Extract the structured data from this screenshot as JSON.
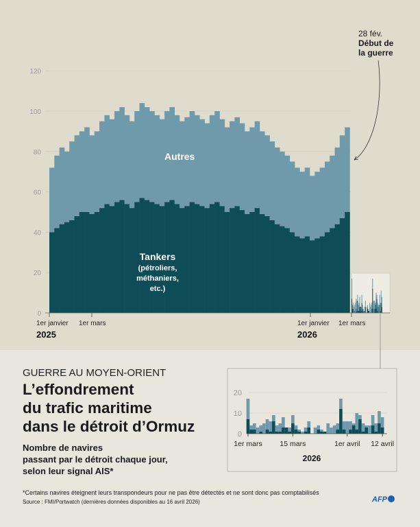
{
  "header": {
    "kicker": "GUERRE AU MOYEN-ORIENT",
    "title_lines": [
      "L’effondrement",
      "du trafic maritime",
      "dans le détroit d’Ormuz"
    ],
    "subtitle_lines": [
      "Nombre de navires",
      "passant par le détroit chaque jour,",
      "selon leur signal AIS*"
    ]
  },
  "footer": {
    "note": "*Certains navires éteignent leurs transpondeurs pour ne pas être détectés et ne sont donc pas comptabilisés",
    "source": "Source : FMI/Portwatch (dernières données disponibles au 16 avril 2026)",
    "logo": "AFP"
  },
  "colors": {
    "tankers": "#0e4d57",
    "autres": "#6f9aab",
    "bg_top": "#e0dccd",
    "bg_bottom": "#e9e6de"
  },
  "chart_data": [
    {
      "type": "bar",
      "stacked": true,
      "granularity": "weekly approximation of daily data",
      "x_start": "2025-01-01",
      "ylim": [
        0,
        130
      ],
      "yticks": [
        0,
        20,
        40,
        60,
        80,
        100,
        120
      ],
      "xticks": [
        {
          "label": "1er janvier",
          "year": "2025"
        },
        {
          "label": "1er mars",
          "year": ""
        },
        {
          "label": "1er janvier",
          "year": "2026"
        },
        {
          "label": "1er mars",
          "year": ""
        }
      ],
      "series": [
        {
          "name": "Tankers (pétroliers, méthaniers, etc.)",
          "label_lines": [
            "Tankers",
            "(pétroliers,",
            "méthaniers,",
            "etc.)"
          ],
          "values": [
            40,
            42,
            44,
            45,
            46,
            48,
            50,
            50,
            49,
            50,
            52,
            54,
            53,
            55,
            56,
            54,
            52,
            55,
            57,
            56,
            55,
            54,
            53,
            55,
            56,
            54,
            52,
            53,
            55,
            54,
            53,
            52,
            54,
            55,
            53,
            50,
            52,
            53,
            51,
            49,
            50,
            52,
            49,
            48,
            46,
            44,
            43,
            42,
            40,
            38,
            37,
            38,
            36,
            37,
            38,
            40,
            42,
            44,
            47,
            50
          ]
        },
        {
          "name": "Autres",
          "label_lines": [
            "Autres"
          ],
          "values": [
            32,
            36,
            38,
            35,
            39,
            40,
            40,
            42,
            39,
            40,
            43,
            44,
            43,
            45,
            46,
            44,
            43,
            45,
            47,
            46,
            45,
            44,
            43,
            45,
            46,
            44,
            43,
            44,
            45,
            44,
            43,
            42,
            44,
            45,
            43,
            42,
            43,
            44,
            43,
            41,
            42,
            43,
            41,
            40,
            39,
            38,
            37,
            36,
            35,
            34,
            33,
            34,
            32,
            33,
            34,
            35,
            36,
            38,
            41,
            42
          ]
        }
      ],
      "annotation": {
        "date": "28 fév.",
        "text_lines": [
          "Début de",
          "la guerre"
        ]
      }
    },
    {
      "type": "bar",
      "stacked": true,
      "x_start": "2026-03-01",
      "ylim": [
        0,
        22
      ],
      "yticks": [
        0,
        10,
        20
      ],
      "xticks": [
        "1er mars",
        "15 mars",
        "1er avril",
        "12 avril"
      ],
      "year": "2026",
      "tankers": [
        7,
        2,
        2,
        0,
        1,
        0,
        2,
        1,
        6,
        1,
        1,
        3,
        3,
        1,
        5,
        2,
        1,
        0,
        1,
        3,
        0,
        0,
        2,
        1,
        1,
        0,
        0,
        0,
        2,
        12,
        2,
        0,
        2,
        4,
        2,
        7,
        1,
        3,
        0,
        4,
        1,
        5,
        3
      ],
      "total": [
        17,
        4,
        5,
        3,
        4,
        5,
        7,
        6,
        9,
        4,
        5,
        8,
        3,
        3,
        9,
        4,
        2,
        1,
        3,
        6,
        0,
        3,
        4,
        2,
        1,
        5,
        3,
        4,
        5,
        17,
        6,
        6,
        6,
        5,
        10,
        9,
        5,
        4,
        4,
        9,
        5,
        11,
        8
      ]
    }
  ]
}
